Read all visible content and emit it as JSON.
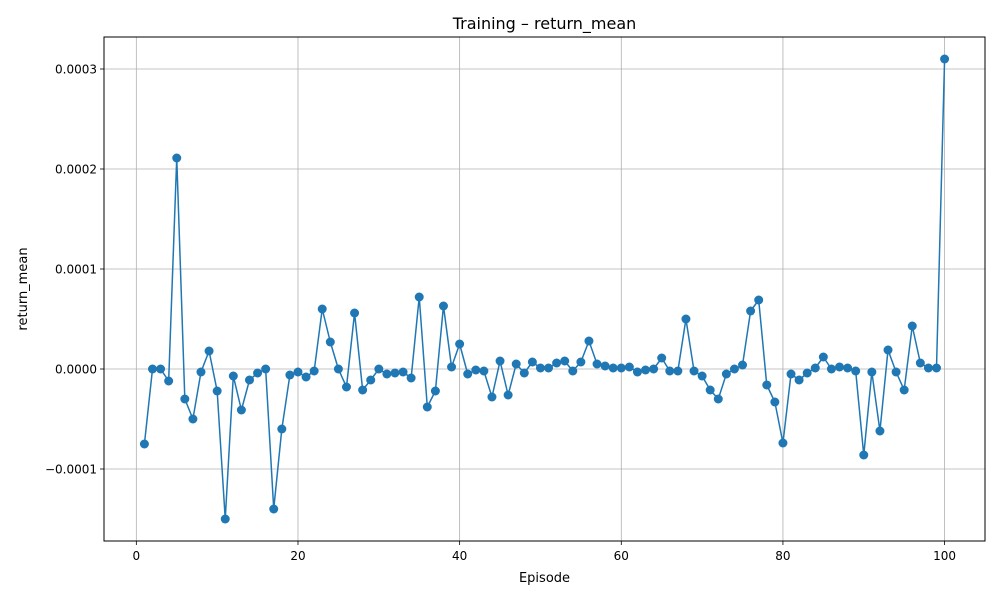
{
  "chart_data": {
    "type": "line",
    "title": "Training – return_mean",
    "xlabel": "Episode",
    "ylabel": "return_mean",
    "xlim": [
      -4,
      105
    ],
    "ylim": [
      -0.000172,
      0.000332
    ],
    "xticks": [
      0,
      20,
      40,
      60,
      80,
      100
    ],
    "xtick_labels": [
      "0",
      "20",
      "40",
      "60",
      "80",
      "100"
    ],
    "yticks": [
      -0.0001,
      0.0,
      0.0001,
      0.0002,
      0.0003
    ],
    "ytick_labels": [
      "−0.0001",
      "0.0000",
      "0.0001",
      "0.0002",
      "0.0003"
    ],
    "grid": true,
    "line_color": "#1f77b4",
    "marker": "circle",
    "series": [
      {
        "x": [
          1,
          2,
          3,
          4,
          5,
          6,
          7,
          8,
          9,
          10,
          11,
          12,
          13,
          14,
          15,
          16,
          17,
          18,
          19,
          20,
          21,
          22,
          23,
          24,
          25,
          26,
          27,
          28,
          29,
          30,
          31,
          32,
          33,
          34,
          35,
          36,
          37,
          38,
          39,
          40,
          41,
          42,
          43,
          44,
          45,
          46,
          47,
          48,
          49,
          50,
          51,
          52,
          53,
          54,
          55,
          56,
          57,
          58,
          59,
          60,
          61,
          62,
          63,
          64,
          65,
          66,
          67,
          68,
          69,
          70,
          71,
          72,
          73,
          74,
          75,
          76,
          77,
          78,
          79,
          80,
          81,
          82,
          83,
          84,
          85,
          86,
          87,
          88,
          89,
          90,
          91,
          92,
          93,
          94,
          95,
          96,
          97,
          98,
          99,
          100
        ],
        "y": [
          -7.5e-05,
          0.0,
          0.0,
          -1.2e-05,
          0.000211,
          -3e-05,
          -5e-05,
          -3e-06,
          1.8e-05,
          -2.2e-05,
          -0.00015,
          -7e-06,
          -4.1e-05,
          -1.1e-05,
          -4e-06,
          0.0,
          -0.00014,
          -6e-05,
          -6e-06,
          -3e-06,
          -8e-06,
          -2e-06,
          6e-05,
          2.7e-05,
          0.0,
          -1.8e-05,
          5.6e-05,
          -2.1e-05,
          -1.1e-05,
          0.0,
          -5e-06,
          -4e-06,
          -3e-06,
          -9e-06,
          7.2e-05,
          -3.8e-05,
          -2.2e-05,
          6.3e-05,
          2e-06,
          2.5e-05,
          -5e-06,
          -1e-06,
          -2e-06,
          -2.8e-05,
          8e-06,
          -2.6e-05,
          5e-06,
          -4e-06,
          7e-06,
          1e-06,
          1e-06,
          6e-06,
          8e-06,
          -2e-06,
          7e-06,
          2.8e-05,
          5e-06,
          3e-06,
          1e-06,
          1e-06,
          2e-06,
          -3e-06,
          -1e-06,
          0.0,
          1.1e-05,
          -2e-06,
          -2e-06,
          5e-05,
          -2e-06,
          -7e-06,
          -2.1e-05,
          -3e-05,
          -5e-06,
          0.0,
          4e-06,
          5.8e-05,
          6.9e-05,
          -1.6e-05,
          -3.3e-05,
          -7.4e-05,
          -5e-06,
          -1.1e-05,
          -4e-06,
          1e-06,
          1.2e-05,
          0.0,
          2e-06,
          1e-06,
          -2e-06,
          -8.6e-05,
          -3e-06,
          -6.2e-05,
          1.9e-05,
          -3e-06,
          -2.1e-05,
          4.3e-05,
          6e-06,
          1e-06,
          1e-06,
          0.00031
        ]
      }
    ]
  }
}
